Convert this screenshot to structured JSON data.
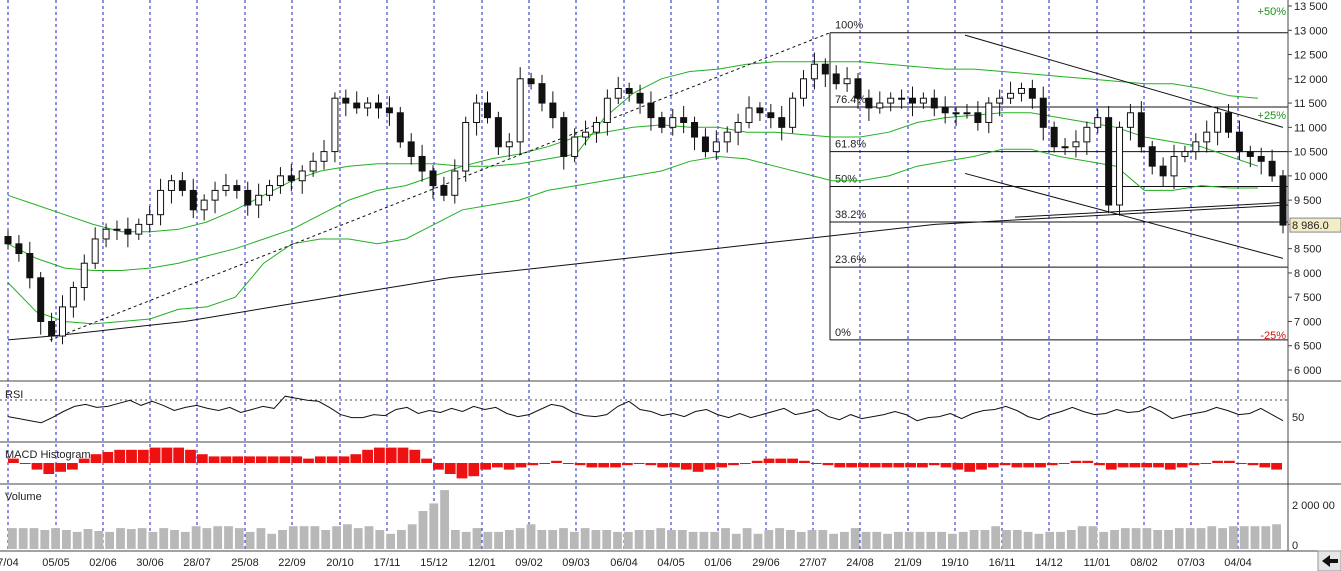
{
  "chart_data": [
    {
      "type": "candlestick",
      "panel": "price",
      "title": "",
      "y_ticks": [
        "13 500",
        "13 000",
        "12 500",
        "12 000",
        "11 500",
        "11 000",
        "10 500",
        "10 000",
        "9 500",
        "9 000",
        "8 500",
        "8 000",
        "7 500",
        "7 000",
        "6 500",
        "6 000"
      ],
      "ylim": [
        6000,
        13500
      ],
      "last_price_label": "8 986.0",
      "last_price": 8986,
      "x_tick_labels": [
        "7/04",
        "05/05",
        "02/06",
        "30/06",
        "28/07",
        "25/08",
        "22/09",
        "20/10",
        "17/11",
        "15/12",
        "12/01",
        "09/02",
        "09/03",
        "06/04",
        "04/05",
        "01/06",
        "29/06",
        "27/07",
        "24/08",
        "21/09",
        "19/10",
        "16/11",
        "14/12",
        "11/01",
        "08/02",
        "07/03",
        "04/04"
      ],
      "fibonacci": {
        "levels": [
          {
            "label": "100%",
            "value": 12950
          },
          {
            "label": "76.4%",
            "value": 11420
          },
          {
            "label": "61.8%",
            "value": 10500
          },
          {
            "label": "50%",
            "value": 9780
          },
          {
            "label": "38.2%",
            "value": 9050
          },
          {
            "label": "23.6%",
            "value": 8120
          },
          {
            "label": "0%",
            "value": 6620
          }
        ]
      },
      "annotations": [
        {
          "label": "+50%",
          "value": 13400,
          "color": "#1a8f1a"
        },
        {
          "label": "+25%",
          "value": 11250,
          "color": "#1a8f1a"
        },
        {
          "label": "-25%",
          "value": 6720,
          "color": "#d01010"
        }
      ],
      "closes": [
        8600,
        8400,
        7900,
        7000,
        6700,
        7300,
        7700,
        8200,
        8700,
        8900,
        8900,
        8800,
        9000,
        9200,
        9700,
        9900,
        9700,
        9300,
        9500,
        9700,
        9800,
        9700,
        9400,
        9600,
        9800,
        10000,
        9900,
        10100,
        10300,
        10500,
        11600,
        11500,
        11400,
        11500,
        11400,
        11300,
        10700,
        10400,
        10100,
        9800,
        9600,
        10100,
        11100,
        11500,
        11200,
        10600,
        10700,
        12000,
        11900,
        11500,
        11200,
        10400,
        10800,
        10900,
        11100,
        11600,
        11800,
        11700,
        11500,
        11200,
        11000,
        11200,
        11100,
        10800,
        10500,
        10700,
        10900,
        11100,
        11400,
        11300,
        11200,
        11000,
        11600,
        12000,
        12300,
        12100,
        11900,
        12000,
        11600,
        11400,
        11500,
        11600,
        11600,
        11500,
        11600,
        11400,
        11300,
        11300,
        11300,
        11100,
        11500,
        11600,
        11700,
        11800,
        11600,
        11000,
        10600,
        10600,
        10700,
        11000,
        11200,
        9400,
        11000,
        11300,
        10600,
        10200,
        10000,
        10400,
        10500,
        10700,
        10900,
        11300,
        10900,
        10500,
        10400,
        10300,
        10000,
        8986
      ],
      "bollinger_upper": [
        9600,
        9400,
        9200,
        9000,
        8850,
        8850,
        8900,
        9050,
        9300,
        9600,
        9900,
        10100,
        10200,
        10250,
        10250,
        10250,
        10200,
        10200,
        10250,
        10350,
        10450,
        11200,
        11700,
        12000,
        12150,
        12200,
        12300,
        12350,
        12350,
        12350,
        12350,
        12300,
        12250,
        12200,
        12200,
        12150,
        12100,
        12050,
        12000,
        11950,
        11900,
        11900,
        11800,
        11650,
        11600
      ],
      "bollinger_middle": [
        8600,
        8300,
        8100,
        8050,
        8050,
        8100,
        8200,
        8350,
        8500,
        8700,
        8900,
        9200,
        9500,
        9700,
        9800,
        10000,
        10200,
        10350,
        10450,
        10600,
        10800,
        10900,
        11000,
        11050,
        11000,
        11000,
        10900,
        10900,
        10850,
        10800,
        10800,
        10900,
        11100,
        11200,
        11250,
        11300,
        11300,
        11200,
        11100,
        11000,
        10800,
        10700,
        10600,
        10400,
        10200
      ],
      "bollinger_lower": [
        7800,
        7200,
        7000,
        6950,
        7000,
        7050,
        7250,
        7300,
        7500,
        8200,
        8600,
        8700,
        8700,
        8600,
        8700,
        9000,
        9300,
        9400,
        9500,
        9700,
        9800,
        9900,
        10000,
        10100,
        10300,
        10400,
        10350,
        10200,
        10050,
        9900,
        9900,
        10000,
        10200,
        10300,
        10400,
        10550,
        10550,
        10400,
        10300,
        10200,
        9700,
        9700,
        9800,
        9750,
        9750
      ],
      "moving_average_long": [
        6620,
        6700,
        6800,
        6900,
        7000,
        7150,
        7300,
        7450,
        7600,
        7750,
        7900,
        8000,
        8100,
        8200,
        8300,
        8400,
        8500,
        8600,
        8700,
        8800,
        8900,
        9000,
        9050,
        9100,
        9150,
        9200,
        9250,
        9300,
        9350,
        9400
      ]
    },
    {
      "type": "line",
      "panel": "RSI",
      "title": "RSI",
      "y_ticks": [
        "50"
      ],
      "ylim": [
        0,
        100
      ],
      "values": [
        40,
        36,
        32,
        28,
        38,
        50,
        60,
        64,
        58,
        60,
        66,
        72,
        62,
        70,
        62,
        52,
        58,
        62,
        56,
        52,
        58,
        48,
        54,
        60,
        56,
        80,
        76,
        72,
        70,
        58,
        44,
        38,
        38,
        44,
        42,
        54,
        58,
        46,
        52,
        48,
        56,
        50,
        60,
        54,
        58,
        46,
        40,
        44,
        54,
        64,
        60,
        48,
        42,
        40,
        44,
        60,
        70,
        54,
        50,
        42,
        46,
        40,
        50,
        54,
        44,
        38,
        46,
        38,
        44,
        50,
        56,
        44,
        48,
        54,
        40,
        34,
        44,
        36,
        40,
        44,
        50,
        44,
        32,
        38,
        40,
        46,
        36,
        46,
        52,
        54,
        60,
        52,
        40,
        34,
        44,
        50,
        58,
        50,
        44,
        46,
        54,
        48,
        50,
        60,
        50,
        36,
        42,
        46,
        50,
        58,
        52,
        44,
        46,
        56,
        44,
        32
      ]
    },
    {
      "type": "bar",
      "panel": "MACD Histogram",
      "title": "MACD Histogram",
      "values": [
        2,
        0,
        -3,
        -5,
        -4,
        -3,
        2,
        4,
        5,
        6,
        6,
        6,
        7,
        7,
        7,
        6,
        4,
        3,
        3,
        3,
        3,
        3,
        3,
        3,
        3,
        2,
        3,
        3,
        3,
        4,
        6,
        7,
        7,
        7,
        6,
        2,
        -3,
        -5,
        -7,
        -6,
        -3,
        -2,
        -3,
        -2,
        -1,
        0,
        1,
        0,
        -1,
        -2,
        -2,
        -2,
        -1,
        0,
        -1,
        -2,
        -2,
        -3,
        -4,
        -3,
        -2,
        -1,
        0,
        1,
        2,
        2,
        2,
        1,
        0,
        -1,
        -2,
        -2,
        -2,
        -2,
        -2,
        -2,
        -2,
        -2,
        -1,
        -2,
        -3,
        -4,
        -3,
        -2,
        -1,
        -2,
        -2,
        -2,
        -1,
        0,
        1,
        1,
        -1,
        -3,
        -2,
        -2,
        -2,
        -2,
        -3,
        -2,
        -1,
        0,
        1,
        1,
        0,
        -1,
        -2,
        -3
      ],
      "color": "#ee1111"
    },
    {
      "type": "bar",
      "panel": "Volume",
      "title": "Volume",
      "y_ticks": [
        "2 000 00",
        "0"
      ],
      "values": [
        22,
        22,
        22,
        20,
        22,
        20,
        18,
        21,
        19,
        18,
        22,
        21,
        22,
        18,
        22,
        20,
        18,
        24,
        22,
        24,
        24,
        22,
        18,
        22,
        16,
        20,
        24,
        24,
        24,
        20,
        24,
        26,
        22,
        24,
        20,
        16,
        20,
        26,
        40,
        48,
        62,
        20,
        18,
        22,
        18,
        18,
        20,
        22,
        26,
        20,
        20,
        22,
        18,
        22,
        20,
        20,
        18,
        18,
        20,
        20,
        22,
        20,
        20,
        18,
        18,
        18,
        22,
        16,
        22,
        16,
        20,
        22,
        20,
        18,
        20,
        20,
        16,
        18,
        22,
        18,
        18,
        16,
        18,
        18,
        18,
        18,
        18,
        16,
        18,
        20,
        20,
        24,
        20,
        20,
        18,
        16,
        18,
        18,
        20,
        24,
        24,
        18,
        20,
        22,
        22,
        22,
        20,
        20,
        22,
        22,
        22,
        24,
        22,
        24,
        24,
        24,
        24,
        26
      ],
      "color": "#b8b8b8"
    }
  ]
}
